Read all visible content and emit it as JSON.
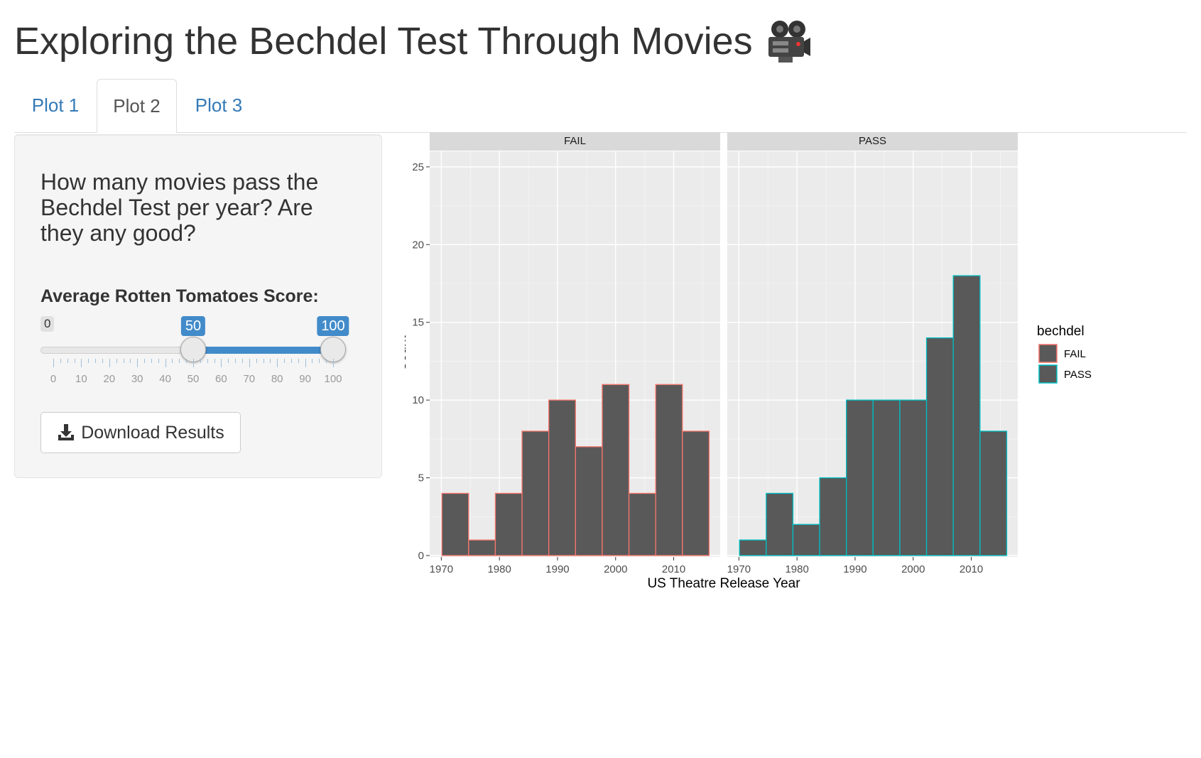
{
  "page": {
    "title": "Exploring the Bechdel Test Through Movies",
    "title_icon": "movie-camera-icon"
  },
  "tabs": [
    {
      "label": "Plot 1",
      "active": false
    },
    {
      "label": "Plot 2",
      "active": true
    },
    {
      "label": "Plot 3",
      "active": false
    }
  ],
  "sidebar": {
    "question": "How many movies pass the Bechdel Test per year? Are they any good?",
    "slider": {
      "label": "Average Rotten Tomatoes Score:",
      "min": 0,
      "max": 100,
      "min_label": "0",
      "from": 50,
      "to": 100,
      "from_label": "50",
      "to_label": "100",
      "tick_labels": [
        "0",
        "10",
        "20",
        "30",
        "40",
        "50",
        "60",
        "70",
        "80",
        "90",
        "100"
      ],
      "accent_color": "#428bca"
    },
    "download_label": "Download Results",
    "download_icon": "download-icon"
  },
  "chart_data": {
    "type": "bar",
    "subtype": "faceted histogram",
    "xlabel": "US Theatre Release Year",
    "ylabel": "Count",
    "ylim": [
      0,
      26
    ],
    "xlim": [
      1968,
      2018
    ],
    "y_ticks": [
      0,
      5,
      10,
      15,
      20,
      25
    ],
    "x_ticks": [
      1970,
      1980,
      1990,
      2000,
      2010
    ],
    "bin_edges": [
      1970.1,
      1974.7,
      1979.3,
      1983.9,
      1988.5,
      1993.1,
      1997.7,
      2002.3,
      2006.9,
      2011.5,
      2016.1
    ],
    "grid": true,
    "fill_color": "#595959",
    "legend": {
      "title": "bechdel",
      "placement": "right",
      "entries": [
        {
          "label": "FAIL",
          "color": "#F8766D"
        },
        {
          "label": "PASS",
          "color": "#00BFC4"
        }
      ]
    },
    "facets": [
      {
        "name": "FAIL",
        "color": "#F8766D",
        "values": [
          4,
          1,
          4,
          8,
          10,
          7,
          11,
          4,
          11,
          8
        ]
      },
      {
        "name": "PASS",
        "color": "#00BFC4",
        "values": [
          1,
          4,
          2,
          5,
          10,
          10,
          10,
          14,
          18,
          8
        ]
      }
    ]
  }
}
